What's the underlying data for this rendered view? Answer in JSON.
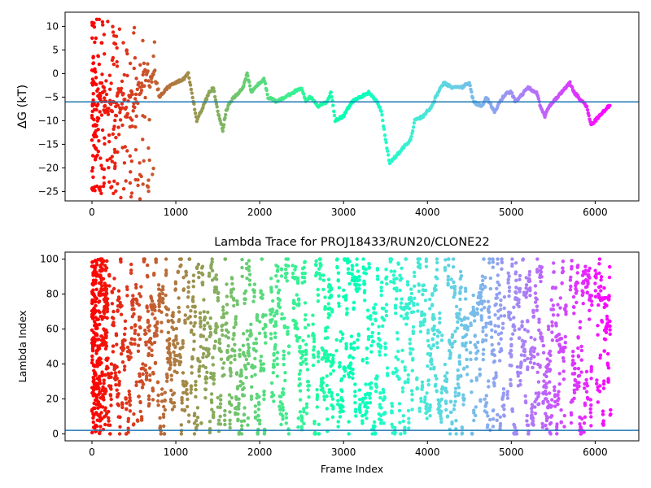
{
  "chart_data": [
    {
      "type": "scatter",
      "title": "",
      "xlabel": "",
      "ylabel": "ΔG (kT)",
      "xlim": [
        -320,
        6520
      ],
      "ylim": [
        -27,
        13
      ],
      "xticks": [
        0,
        1000,
        2000,
        3000,
        4000,
        5000,
        6000
      ],
      "yticks": [
        10,
        5,
        0,
        -5,
        -10,
        -15,
        -20,
        -25
      ],
      "hline": -6,
      "hline_color": "#1f77b4",
      "colormap": "rainbow (red at early frames → violet at late frames)",
      "grid": false,
      "series_trace": [
        [
          0,
          -10
        ],
        [
          20,
          2
        ],
        [
          40,
          -18
        ],
        [
          60,
          -8
        ],
        [
          100,
          -6
        ],
        [
          150,
          -4
        ],
        [
          200,
          -8
        ],
        [
          250,
          -10
        ],
        [
          300,
          -6
        ],
        [
          350,
          -5
        ],
        [
          400,
          -8
        ],
        [
          450,
          -4
        ],
        [
          500,
          -6
        ],
        [
          550,
          -4
        ],
        [
          600,
          -2
        ],
        [
          650,
          0
        ],
        [
          700,
          -2
        ],
        [
          750,
          0
        ],
        [
          800,
          -5
        ],
        [
          900,
          -3
        ],
        [
          1000,
          -2
        ],
        [
          1100,
          -1
        ],
        [
          1150,
          0
        ],
        [
          1200,
          -5
        ],
        [
          1250,
          -10
        ],
        [
          1300,
          -8
        ],
        [
          1400,
          -4
        ],
        [
          1450,
          -3
        ],
        [
          1500,
          -8
        ],
        [
          1560,
          -12
        ],
        [
          1600,
          -8
        ],
        [
          1650,
          -6
        ],
        [
          1700,
          -5
        ],
        [
          1800,
          -3
        ],
        [
          1850,
          0
        ],
        [
          1900,
          -4
        ],
        [
          2000,
          -2
        ],
        [
          2050,
          -1
        ],
        [
          2100,
          -5
        ],
        [
          2200,
          -6
        ],
        [
          2300,
          -5
        ],
        [
          2400,
          -4
        ],
        [
          2500,
          -3
        ],
        [
          2550,
          -6
        ],
        [
          2600,
          -5
        ],
        [
          2700,
          -7
        ],
        [
          2800,
          -6
        ],
        [
          2850,
          -4
        ],
        [
          2900,
          -10
        ],
        [
          3000,
          -9
        ],
        [
          3100,
          -6
        ],
        [
          3200,
          -5
        ],
        [
          3300,
          -4
        ],
        [
          3400,
          -6
        ],
        [
          3450,
          -8
        ],
        [
          3500,
          -14
        ],
        [
          3550,
          -19
        ],
        [
          3600,
          -18
        ],
        [
          3700,
          -16
        ],
        [
          3800,
          -14
        ],
        [
          3850,
          -10
        ],
        [
          3950,
          -9
        ],
        [
          4050,
          -7
        ],
        [
          4100,
          -5
        ],
        [
          4150,
          -3
        ],
        [
          4200,
          -2
        ],
        [
          4300,
          -3
        ],
        [
          4400,
          -3
        ],
        [
          4500,
          -2
        ],
        [
          4550,
          -6
        ],
        [
          4650,
          -7
        ],
        [
          4700,
          -5
        ],
        [
          4800,
          -8
        ],
        [
          4900,
          -5
        ],
        [
          4950,
          -4
        ],
        [
          5000,
          -4
        ],
        [
          5050,
          -6
        ],
        [
          5100,
          -5
        ],
        [
          5200,
          -3
        ],
        [
          5300,
          -4
        ],
        [
          5350,
          -7
        ],
        [
          5400,
          -9
        ],
        [
          5450,
          -7
        ],
        [
          5550,
          -5
        ],
        [
          5650,
          -3
        ],
        [
          5700,
          -2
        ],
        [
          5750,
          -4
        ],
        [
          5800,
          -5
        ],
        [
          5900,
          -7
        ],
        [
          5950,
          -11
        ],
        [
          6000,
          -10
        ],
        [
          6050,
          -9
        ],
        [
          6100,
          -8
        ],
        [
          6150,
          -7
        ],
        [
          6180,
          -7
        ]
      ]
    },
    {
      "type": "scatter",
      "title": "Lambda Trace for PROJ18433/RUN20/CLONE22",
      "xlabel": "Frame Index",
      "ylabel": "Lambda Index",
      "xlim": [
        -320,
        6520
      ],
      "ylim": [
        -4,
        104
      ],
      "xticks": [
        0,
        1000,
        2000,
        3000,
        4000,
        5000,
        6000
      ],
      "yticks": [
        0,
        20,
        40,
        60,
        80,
        100
      ],
      "hline": 2,
      "hline_color": "#1f77b4",
      "colormap": "rainbow (red at early frames → violet at late frames)",
      "grid": false,
      "x_range_of_points": [
        0,
        6180
      ],
      "lambda_range_of_points": [
        0,
        100
      ]
    }
  ]
}
